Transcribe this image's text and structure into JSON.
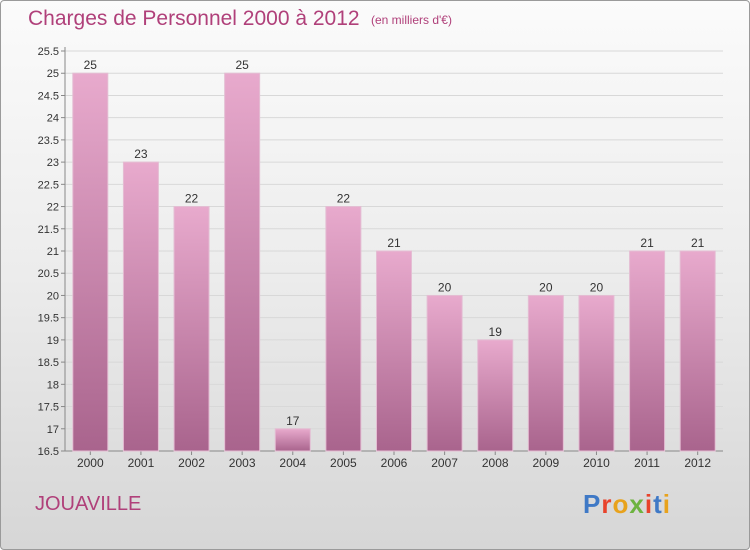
{
  "title": "Charges de Personnel 2000 à 2012",
  "subtitle": "(en milliers d'€)",
  "commune": "JOUAVILLE",
  "logo": {
    "text": "Proxiti",
    "letter_colors": [
      "#3f79c6",
      "#e8432c",
      "#e8a21c",
      "#6db33f",
      "#e8432c",
      "#3f79c6",
      "#e8a21c"
    ]
  },
  "colors": {
    "title": "#b0407a",
    "bar_top": "#e8aacd",
    "bar_bottom": "#a9648d"
  },
  "chart_data": {
    "type": "bar",
    "title": "Charges de Personnel 2000 à 2012",
    "subtitle": "(en milliers d'€)",
    "categories": [
      "2000",
      "2001",
      "2002",
      "2003",
      "2004",
      "2005",
      "2006",
      "2007",
      "2008",
      "2009",
      "2010",
      "2011",
      "2012"
    ],
    "values": [
      25,
      23,
      22,
      25,
      17,
      22,
      21,
      20,
      19,
      20,
      20,
      21,
      21
    ],
    "data_labels": [
      "25",
      "23",
      "22",
      "25",
      "17",
      "22",
      "21",
      "20",
      "19",
      "20",
      "20",
      "21",
      "21"
    ],
    "yticks": [
      "16.5",
      "17",
      "17.5",
      "18",
      "18.5",
      "19",
      "19.5",
      "20",
      "20.5",
      "21",
      "21.5",
      "22",
      "22.5",
      "23",
      "23.5",
      "24",
      "24.5",
      "25",
      "25.5"
    ],
    "ylim": [
      16.5,
      25.5
    ],
    "grid": true,
    "xlabel": "",
    "ylabel": ""
  }
}
